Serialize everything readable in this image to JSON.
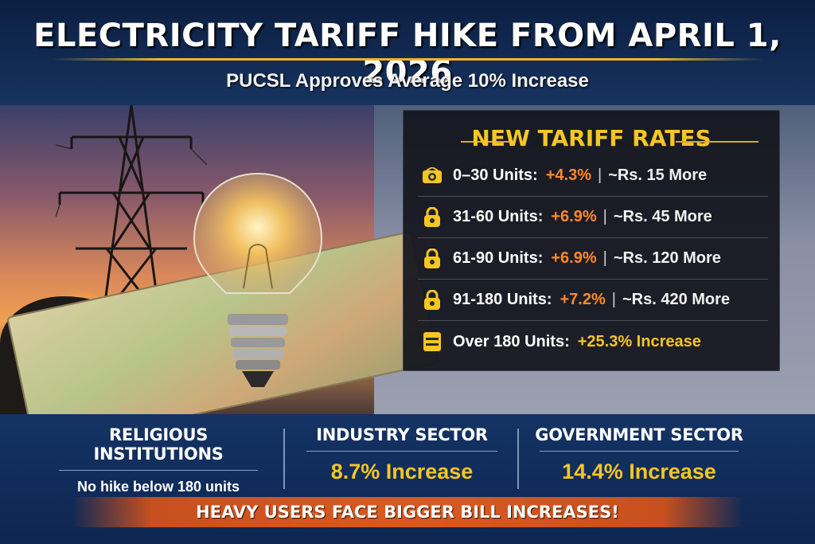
{
  "header": {
    "title": "ELECTRICITY TARIFF HIKE FROM APRIL 1, 2026",
    "subtitle": "PUCSL Approves Average 10% Increase"
  },
  "tariff_panel": {
    "title": "NEW TARIFF RATES",
    "rows": [
      {
        "icon": "bulb-icon",
        "label": "0–30 Units:",
        "percent": "+4.3%",
        "separator": "|",
        "extra": "~Rs. 15 More"
      },
      {
        "icon": "lock-icon",
        "label": "31-60 Units:",
        "percent": "+6.9%",
        "separator": "|",
        "extra": "~Rs. 45 More"
      },
      {
        "icon": "lock-icon",
        "label": "61-90 Units:",
        "percent": "+6.9%",
        "separator": "|",
        "extra": "~Rs. 120 More"
      },
      {
        "icon": "lock-icon",
        "label": "91-180 Units:",
        "percent": "+7.2%",
        "separator": "|",
        "extra": "~Rs. 420 More"
      },
      {
        "icon": "battery-icon",
        "label": "Over 180 Units:",
        "percent": "+25.3% Increase"
      }
    ]
  },
  "sectors": [
    {
      "heading": "RELIGIOUS INSTITUTIONS",
      "value": "No hike below 180 units"
    },
    {
      "heading": "INDUSTRY SECTOR",
      "value": "8.7% Increase"
    },
    {
      "heading": "GOVERNMENT SECTOR",
      "value": "14.4% Increase"
    }
  ],
  "banner": "HEAVY USERS FACE BIGGER BILL INCREASES!",
  "colors": {
    "accent_gold": "#f6c623",
    "accent_orange": "#ff8a2a",
    "navy": "#0d2246",
    "banner_orange": "#d85a20"
  }
}
